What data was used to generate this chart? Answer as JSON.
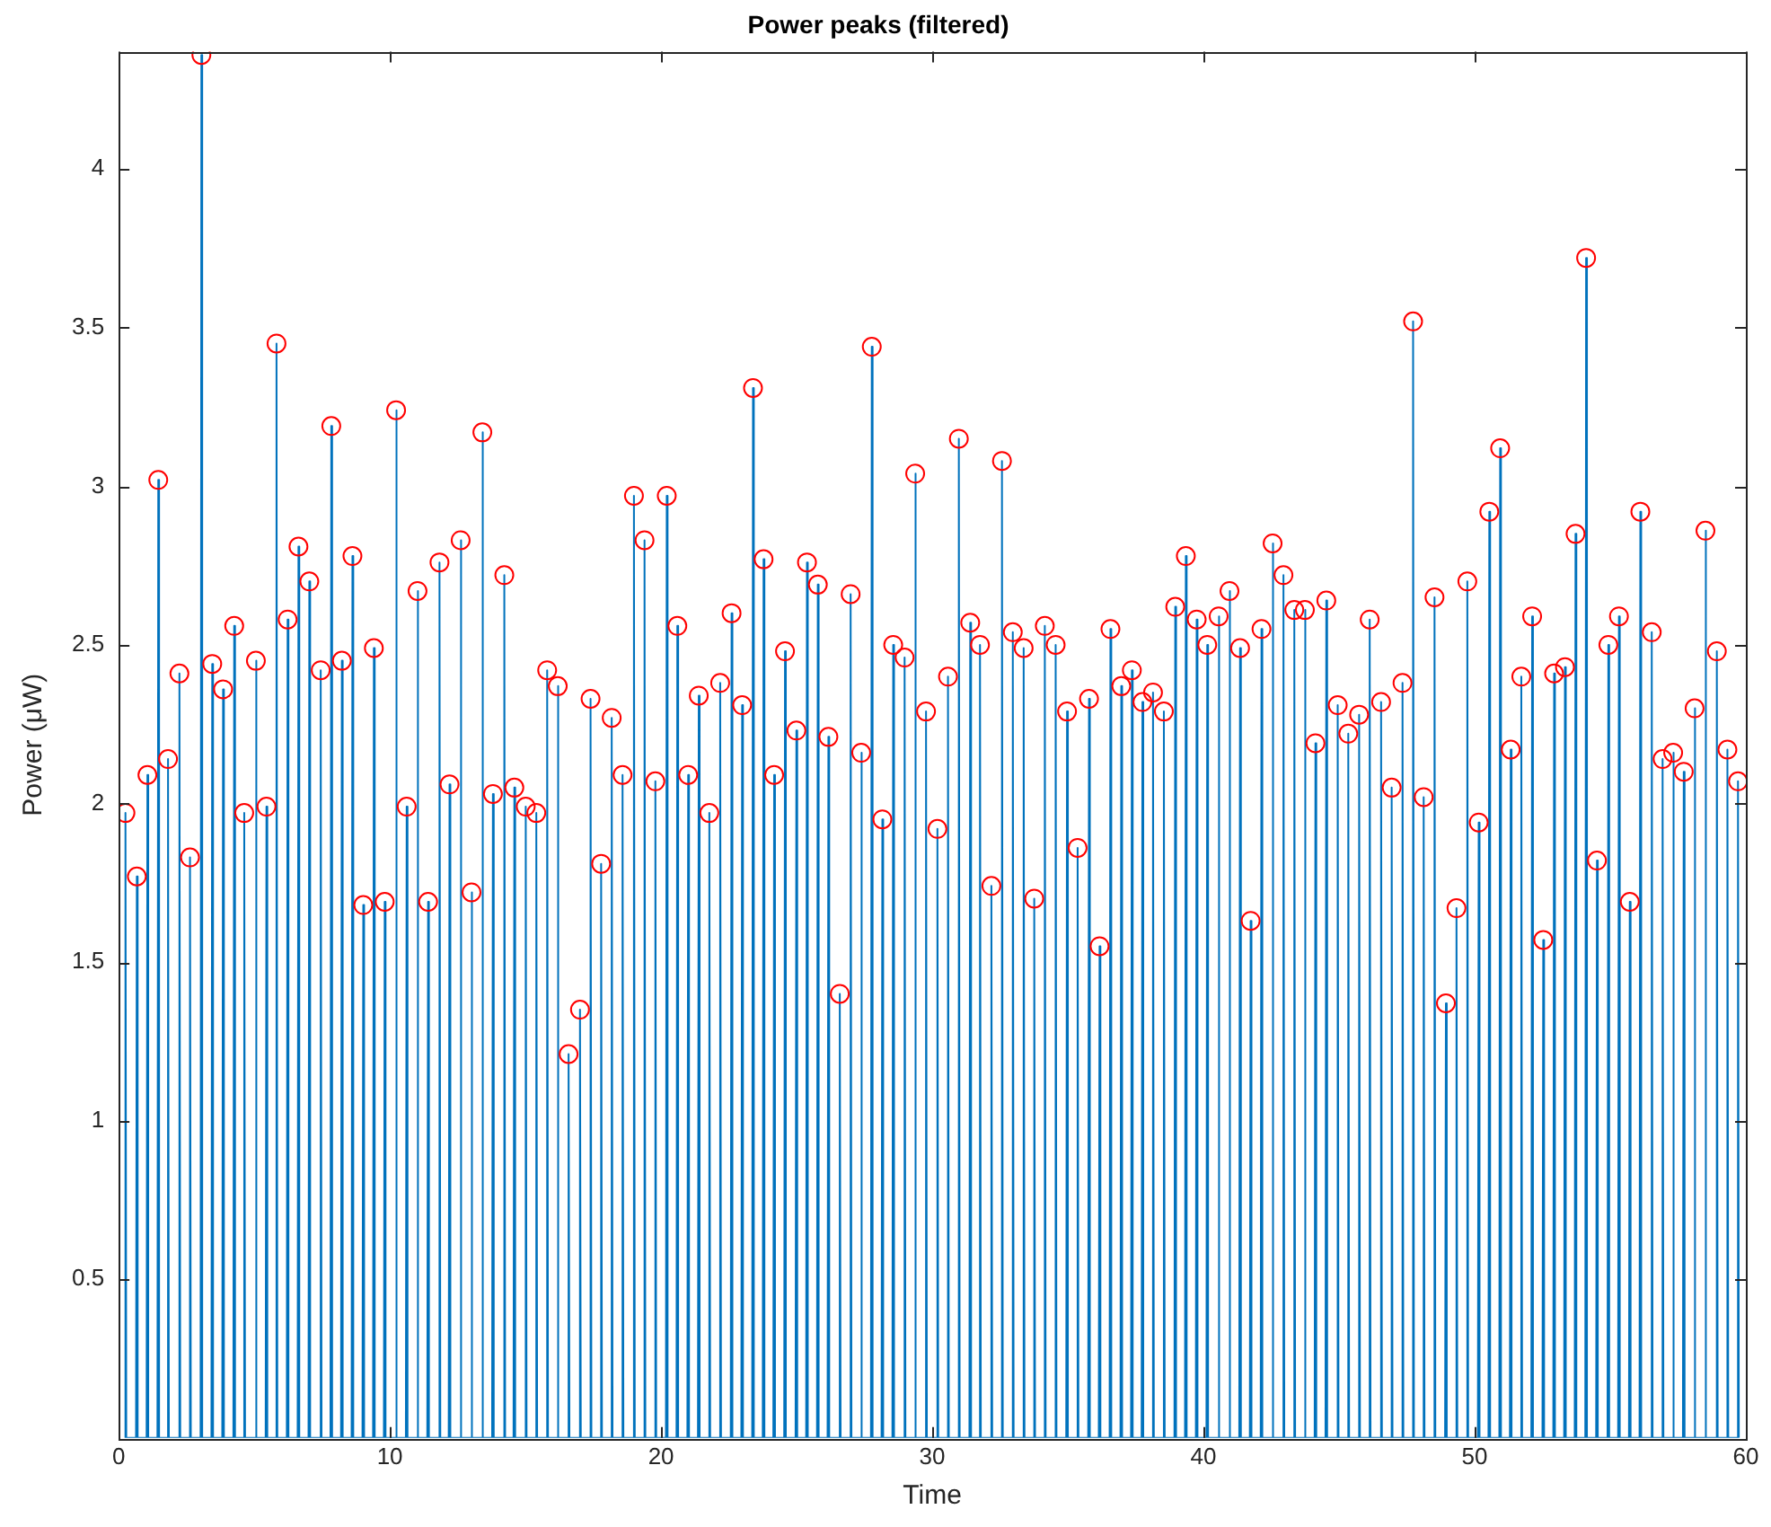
{
  "chart_data": {
    "type": "line",
    "title": "Power peaks (filtered)",
    "xlabel": "Time",
    "ylabel": "Power (μW)",
    "xlim": [
      0,
      60
    ],
    "ylim": [
      0,
      4.37
    ],
    "xticks": [
      0,
      10,
      20,
      30,
      40,
      50,
      60
    ],
    "yticks": [
      0.5,
      1,
      1.5,
      2,
      2.5,
      3,
      3.5,
      4
    ],
    "grid": false,
    "legend": false,
    "series": [
      {
        "type": "line",
        "color": "#0072bd",
        "marker": "none",
        "x": [
          0.22,
          0.25,
          0.28,
          0.64,
          0.67,
          0.7,
          1.03,
          1.06,
          1.09,
          1.43,
          1.46,
          1.49,
          1.79,
          1.82,
          1.85,
          2.21,
          2.24,
          2.27,
          2.6,
          2.63,
          2.66,
          3.02,
          3.05,
          3.08,
          3.42,
          3.45,
          3.48,
          3.82,
          3.85,
          3.88,
          4.23,
          4.26,
          4.29,
          4.6,
          4.63,
          4.66,
          5.03,
          5.06,
          5.09,
          5.42,
          5.45,
          5.48,
          5.79,
          5.82,
          5.85,
          6.2,
          6.23,
          6.26,
          6.6,
          6.63,
          6.66,
          7.0,
          7.03,
          7.06,
          7.42,
          7.45,
          7.48,
          7.81,
          7.84,
          7.87,
          8.2,
          8.23,
          8.26,
          8.59,
          8.62,
          8.65,
          8.99,
          9.02,
          9.05,
          9.38,
          9.41,
          9.44,
          9.78,
          9.81,
          9.84,
          10.2,
          10.23,
          10.26,
          10.59,
          10.62,
          10.65,
          10.99,
          11.02,
          11.05,
          11.38,
          11.41,
          11.44,
          11.8,
          11.83,
          11.86,
          12.17,
          12.2,
          12.23,
          12.58,
          12.61,
          12.64,
          12.98,
          13.01,
          13.04,
          13.38,
          13.41,
          13.44,
          13.77,
          13.8,
          13.83,
          14.19,
          14.22,
          14.25,
          14.56,
          14.59,
          14.62,
          14.98,
          15.01,
          15.04,
          15.37,
          15.4,
          15.43,
          15.77,
          15.8,
          15.83,
          16.16,
          16.19,
          16.22,
          16.56,
          16.59,
          16.62,
          16.98,
          17.01,
          17.04,
          17.37,
          17.4,
          17.43,
          17.76,
          17.79,
          17.82,
          18.15,
          18.18,
          18.21,
          18.55,
          18.58,
          18.61,
          18.97,
          19.0,
          19.03,
          19.36,
          19.39,
          19.42,
          19.76,
          19.79,
          19.82,
          20.18,
          20.21,
          20.24,
          20.57,
          20.6,
          20.63,
          20.97,
          21.0,
          21.03,
          21.36,
          21.39,
          21.42,
          21.75,
          21.78,
          21.81,
          22.15,
          22.18,
          22.21,
          22.57,
          22.6,
          22.63,
          22.96,
          22.99,
          23.02,
          23.36,
          23.39,
          23.42,
          23.75,
          23.78,
          23.81,
          24.14,
          24.17,
          24.2,
          24.54,
          24.57,
          24.6,
          24.96,
          24.99,
          25.02,
          25.35,
          25.38,
          25.41,
          25.75,
          25.78,
          25.81,
          26.14,
          26.17,
          26.2,
          26.56,
          26.59,
          26.62,
          26.96,
          26.99,
          27.02,
          27.35,
          27.38,
          27.41,
          27.74,
          27.77,
          27.8,
          28.13,
          28.16,
          28.19,
          28.53,
          28.56,
          28.59,
          28.95,
          28.98,
          29.01,
          29.34,
          29.37,
          29.4,
          29.74,
          29.77,
          29.8,
          30.16,
          30.19,
          30.22,
          30.55,
          30.58,
          30.61,
          30.95,
          30.98,
          31.01,
          31.37,
          31.4,
          31.43,
          31.73,
          31.76,
          31.79,
          32.15,
          32.18,
          32.21,
          32.54,
          32.57,
          32.6,
          32.94,
          32.97,
          33.0,
          33.34,
          33.37,
          33.4,
          33.73,
          33.76,
          33.79,
          34.12,
          34.15,
          34.18,
          34.52,
          34.55,
          34.58,
          34.94,
          34.97,
          35.0,
          35.33,
          35.36,
          35.39,
          35.75,
          35.78,
          35.81,
          36.14,
          36.17,
          36.2,
          36.54,
          36.57,
          36.6,
          36.94,
          36.97,
          37.0,
          37.33,
          37.36,
          37.39,
          37.72,
          37.75,
          37.78,
          38.11,
          38.14,
          38.17,
          38.51,
          38.54,
          38.57,
          38.93,
          38.96,
          38.99,
          39.32,
          39.35,
          39.38,
          39.72,
          39.75,
          39.78,
          40.11,
          40.14,
          40.17,
          40.53,
          40.56,
          40.59,
          40.93,
          40.96,
          40.99,
          41.32,
          41.35,
          41.38,
          41.71,
          41.74,
          41.77,
          42.11,
          42.14,
          42.17,
          42.52,
          42.55,
          42.58,
          42.92,
          42.95,
          42.98,
          43.32,
          43.35,
          43.38,
          43.71,
          43.74,
          43.77,
          44.1,
          44.13,
          44.16,
          44.5,
          44.53,
          44.56,
          44.92,
          44.95,
          44.98,
          45.31,
          45.34,
          45.37,
          45.71,
          45.74,
          45.77,
          46.1,
          46.13,
          46.16,
          46.52,
          46.55,
          46.58,
          46.91,
          46.94,
          46.97,
          47.31,
          47.34,
          47.37,
          47.7,
          47.73,
          47.76,
          48.09,
          48.12,
          48.15,
          48.49,
          48.52,
          48.55,
          48.91,
          48.94,
          48.97,
          49.3,
          49.33,
          49.36,
          49.7,
          49.73,
          49.76,
          50.12,
          50.15,
          50.18,
          50.51,
          50.54,
          50.57,
          50.91,
          50.94,
          50.97,
          51.3,
          51.33,
          51.36,
          51.69,
          51.72,
          51.75,
          52.09,
          52.12,
          52.15,
          52.5,
          52.53,
          52.56,
          52.9,
          52.93,
          52.96,
          53.3,
          53.33,
          53.36,
          53.69,
          53.72,
          53.75,
          54.08,
          54.11,
          54.14,
          54.48,
          54.51,
          54.54,
          54.9,
          54.93,
          54.96,
          55.29,
          55.32,
          55.35,
          55.69,
          55.72,
          55.75,
          56.08,
          56.11,
          56.14,
          56.5,
          56.53,
          56.56,
          56.9,
          56.93,
          56.96,
          57.29,
          57.32,
          57.35,
          57.68,
          57.71,
          57.74,
          58.08,
          58.11,
          58.14,
          58.48,
          58.51,
          58.54,
          58.9,
          58.93,
          58.96,
          59.29,
          59.32,
          59.35,
          59.68,
          59.71,
          59.74
        ],
        "values": [
          0,
          1.97,
          0,
          0,
          1.77,
          0,
          0,
          2.09,
          0,
          0,
          3.02,
          0,
          0,
          2.14,
          0,
          0,
          2.41,
          0,
          0,
          1.83,
          0,
          0,
          4.36,
          0,
          0,
          2.44,
          0,
          0,
          2.36,
          0,
          0,
          2.56,
          0,
          0,
          1.97,
          0,
          0,
          2.45,
          0,
          0,
          1.99,
          0,
          0,
          3.45,
          0,
          0,
          2.58,
          0,
          0,
          2.81,
          0,
          0,
          2.7,
          0,
          0,
          2.42,
          0,
          0,
          3.19,
          0,
          0,
          2.45,
          0,
          0,
          2.78,
          0,
          0,
          1.68,
          0,
          0,
          2.49,
          0,
          0,
          1.69,
          0,
          0,
          3.24,
          0,
          0,
          1.99,
          0,
          0,
          2.67,
          0,
          0,
          1.69,
          0,
          0,
          2.76,
          0,
          0,
          2.06,
          0,
          0,
          2.83,
          0,
          0,
          1.72,
          0,
          0,
          3.17,
          0,
          0,
          2.03,
          0,
          0,
          2.72,
          0,
          0,
          2.05,
          0,
          0,
          1.99,
          0,
          0,
          1.97,
          0,
          0,
          2.42,
          0,
          0,
          2.37,
          0,
          0,
          1.21,
          0,
          0,
          1.35,
          0,
          0,
          2.33,
          0,
          0,
          1.81,
          0,
          0,
          2.27,
          0,
          0,
          2.09,
          0,
          0,
          2.97,
          0,
          0,
          2.83,
          0,
          0,
          2.07,
          0,
          0,
          2.97,
          0,
          0,
          2.56,
          0,
          0,
          2.09,
          0,
          0,
          2.34,
          0,
          0,
          1.97,
          0,
          0,
          2.38,
          0,
          0,
          2.6,
          0,
          0,
          2.31,
          0,
          0,
          3.31,
          0,
          0,
          2.77,
          0,
          0,
          2.09,
          0,
          0,
          2.48,
          0,
          0,
          2.23,
          0,
          0,
          2.76,
          0,
          0,
          2.69,
          0,
          0,
          2.21,
          0,
          0,
          1.4,
          0,
          0,
          2.66,
          0,
          0,
          2.16,
          0,
          0,
          3.44,
          0,
          0,
          1.95,
          0,
          0,
          2.5,
          0,
          0,
          2.46,
          0,
          0,
          3.04,
          0,
          0,
          2.29,
          0,
          0,
          1.92,
          0,
          0,
          2.4,
          0,
          0,
          3.15,
          0,
          0,
          2.57,
          0,
          0,
          2.5,
          0,
          0,
          1.74,
          0,
          0,
          3.08,
          0,
          0,
          2.54,
          0,
          0,
          2.49,
          0,
          0,
          1.7,
          0,
          0,
          2.56,
          0,
          0,
          2.5,
          0,
          0,
          2.29,
          0,
          0,
          1.86,
          0,
          0,
          2.33,
          0,
          0,
          1.55,
          0,
          0,
          2.55,
          0,
          0,
          2.37,
          0,
          0,
          2.42,
          0,
          0,
          2.32,
          0,
          0,
          2.35,
          0,
          0,
          2.29,
          0,
          0,
          2.62,
          0,
          0,
          2.78,
          0,
          0,
          2.58,
          0,
          0,
          2.5,
          0,
          0,
          2.59,
          0,
          0,
          2.67,
          0,
          0,
          2.49,
          0,
          0,
          1.63,
          0,
          0,
          2.55,
          0,
          0,
          2.82,
          0,
          0,
          2.72,
          0,
          0,
          2.61,
          0,
          0,
          2.61,
          0,
          0,
          2.19,
          0,
          0,
          2.64,
          0,
          0,
          2.31,
          0,
          0,
          2.22,
          0,
          0,
          2.28,
          0,
          0,
          2.58,
          0,
          0,
          2.32,
          0,
          0,
          2.05,
          0,
          0,
          2.38,
          0,
          0,
          3.52,
          0,
          0,
          2.02,
          0,
          0,
          2.65,
          0,
          0,
          1.37,
          0,
          0,
          1.67,
          0,
          0,
          2.7,
          0,
          0,
          1.94,
          0,
          0,
          2.92,
          0,
          0,
          3.12,
          0,
          0,
          2.17,
          0,
          0,
          2.4,
          0,
          0,
          2.59,
          0,
          0,
          1.57,
          0,
          0,
          2.41,
          0,
          0,
          2.43,
          0,
          0,
          2.85,
          0,
          0,
          3.72,
          0,
          0,
          1.82,
          0,
          0,
          2.5,
          0,
          0,
          2.59,
          0,
          0,
          1.69,
          0,
          0,
          2.92,
          0,
          0,
          2.54,
          0,
          0,
          2.14,
          0,
          0,
          2.16,
          0,
          0,
          2.1,
          0,
          0,
          2.3,
          0,
          0,
          2.86,
          0,
          0,
          2.48,
          0,
          0,
          2.17,
          0,
          0,
          2.07,
          0
        ]
      },
      {
        "type": "scatter",
        "color": "#ff0000",
        "marker": "circle",
        "x": [
          0.25,
          0.67,
          1.06,
          1.46,
          1.82,
          2.24,
          2.63,
          3.05,
          3.45,
          3.85,
          4.26,
          4.63,
          5.06,
          5.45,
          5.82,
          6.23,
          6.63,
          7.03,
          7.45,
          7.84,
          8.23,
          8.62,
          9.02,
          9.41,
          9.81,
          10.23,
          10.62,
          11.02,
          11.41,
          11.83,
          12.2,
          12.61,
          13.01,
          13.41,
          13.8,
          14.22,
          14.59,
          15.01,
          15.4,
          15.8,
          16.19,
          16.59,
          17.01,
          17.4,
          17.79,
          18.18,
          18.58,
          19.0,
          19.39,
          19.79,
          20.21,
          20.6,
          21.0,
          21.39,
          21.78,
          22.18,
          22.6,
          22.99,
          23.39,
          23.78,
          24.17,
          24.57,
          24.99,
          25.38,
          25.78,
          26.17,
          26.59,
          26.99,
          27.38,
          27.77,
          28.16,
          28.56,
          28.98,
          29.37,
          29.77,
          30.19,
          30.58,
          30.98,
          31.4,
          31.76,
          32.18,
          32.57,
          32.97,
          33.37,
          33.76,
          34.15,
          34.55,
          34.97,
          35.36,
          35.78,
          36.17,
          36.57,
          36.97,
          37.36,
          37.75,
          38.14,
          38.54,
          38.96,
          39.35,
          39.75,
          40.14,
          40.56,
          40.96,
          41.35,
          41.74,
          42.14,
          42.55,
          42.95,
          43.35,
          43.74,
          44.13,
          44.53,
          44.95,
          45.34,
          45.74,
          46.13,
          46.55,
          46.94,
          47.34,
          47.73,
          48.12,
          48.52,
          48.94,
          49.33,
          49.73,
          50.15,
          50.54,
          50.94,
          51.33,
          51.72,
          52.12,
          52.53,
          52.93,
          53.33,
          53.72,
          54.11,
          54.51,
          54.93,
          55.32,
          55.72,
          56.11,
          56.53,
          56.93,
          57.32,
          57.71,
          58.11,
          58.51,
          58.93,
          59.32,
          59.71
        ],
        "values": [
          1.97,
          1.77,
          2.09,
          3.02,
          2.14,
          2.41,
          1.83,
          4.36,
          2.44,
          2.36,
          2.56,
          1.97,
          2.45,
          1.99,
          3.45,
          2.58,
          2.81,
          2.7,
          2.42,
          3.19,
          2.45,
          2.78,
          1.68,
          2.49,
          1.69,
          3.24,
          1.99,
          2.67,
          1.69,
          2.76,
          2.06,
          2.83,
          1.72,
          3.17,
          2.03,
          2.72,
          2.05,
          1.99,
          1.97,
          2.42,
          2.37,
          1.21,
          1.35,
          2.33,
          1.81,
          2.27,
          2.09,
          2.97,
          2.83,
          2.07,
          2.97,
          2.56,
          2.09,
          2.34,
          1.97,
          2.38,
          2.6,
          2.31,
          3.31,
          2.77,
          2.09,
          2.48,
          2.23,
          2.76,
          2.69,
          2.21,
          1.4,
          2.66,
          2.16,
          3.44,
          1.95,
          2.5,
          2.46,
          3.04,
          2.29,
          1.92,
          2.4,
          3.15,
          2.57,
          2.5,
          1.74,
          3.08,
          2.54,
          2.49,
          1.7,
          2.56,
          2.5,
          2.29,
          1.86,
          2.33,
          1.55,
          2.55,
          2.37,
          2.42,
          2.32,
          2.35,
          2.29,
          2.62,
          2.78,
          2.58,
          2.5,
          2.59,
          2.67,
          2.49,
          1.63,
          2.55,
          2.82,
          2.72,
          2.61,
          2.61,
          2.19,
          2.64,
          2.31,
          2.22,
          2.28,
          2.58,
          2.32,
          2.05,
          2.38,
          3.52,
          2.02,
          2.65,
          1.37,
          1.67,
          2.7,
          1.94,
          2.92,
          3.12,
          2.17,
          2.4,
          2.59,
          1.57,
          2.41,
          2.43,
          2.85,
          3.72,
          1.82,
          2.5,
          2.59,
          1.69,
          2.92,
          2.54,
          2.14,
          2.16,
          2.1,
          2.3,
          2.86,
          2.48,
          2.17,
          2.07
        ]
      }
    ]
  }
}
